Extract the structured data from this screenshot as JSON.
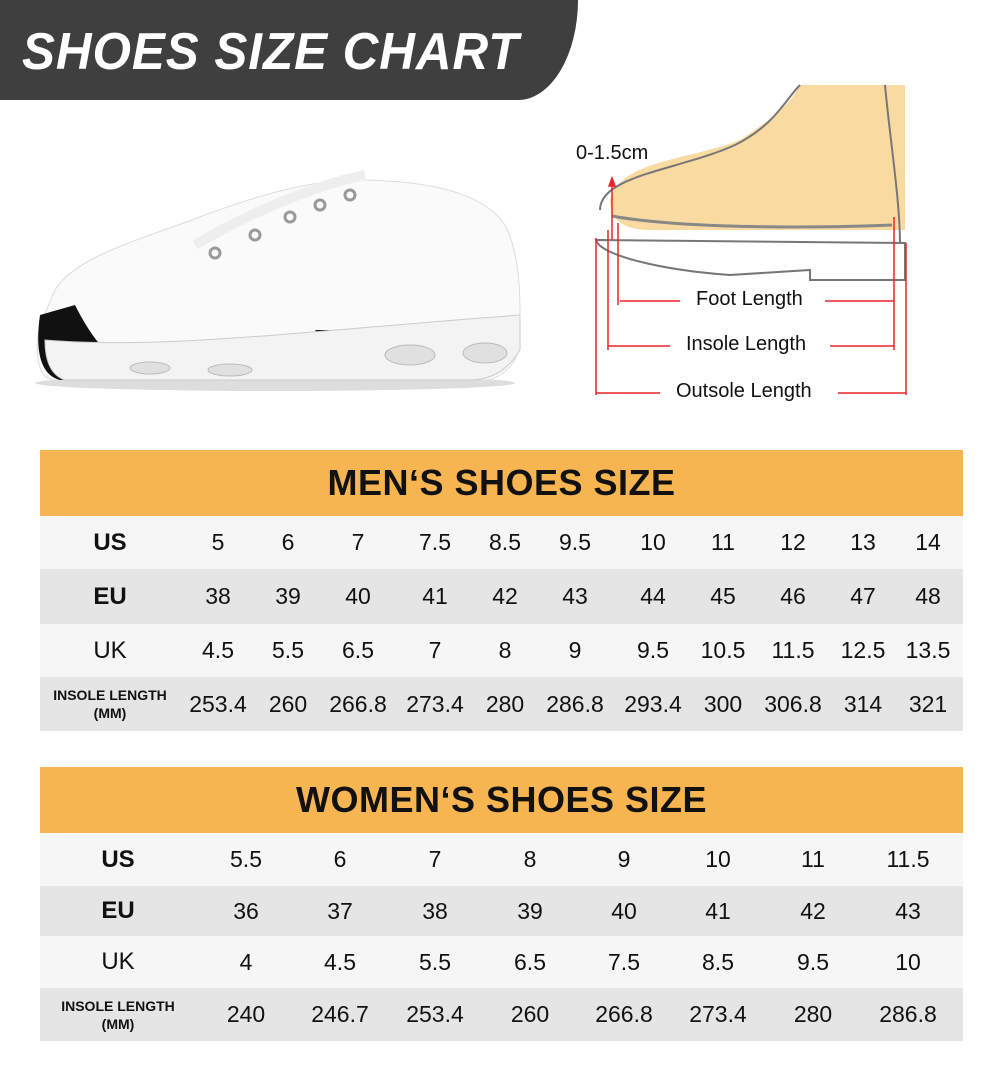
{
  "header": {
    "title": "SHOES SIZE CHART"
  },
  "diagram": {
    "toe_gap": "0-1.5cm",
    "foot_length": "Foot Length",
    "insole_length": "Insole Length",
    "outsole_length": "Outsole Length"
  },
  "colors": {
    "banner": "#3f3f3f",
    "table_header": "#f7b551",
    "row_light": "#f6f6f6",
    "row_dark": "#e5e5e5",
    "measure_lines": "#e8242a"
  },
  "men": {
    "title": "MEN‘S SHOES SIZE",
    "rows": [
      {
        "label": "US",
        "values": [
          "5",
          "6",
          "7",
          "7.5",
          "8.5",
          "9.5",
          "10",
          "11",
          "12",
          "13",
          "14"
        ]
      },
      {
        "label": "EU",
        "values": [
          "38",
          "39",
          "40",
          "41",
          "42",
          "43",
          "44",
          "45",
          "46",
          "47",
          "48"
        ]
      },
      {
        "label": "UK",
        "values": [
          "4.5",
          "5.5",
          "6.5",
          "7",
          "8",
          "9",
          "9.5",
          "10.5",
          "11.5",
          "12.5",
          "13.5"
        ]
      },
      {
        "label": "INSOLE LENGTH",
        "label2": "(MM)",
        "values": [
          "253.4",
          "260",
          "266.8",
          "273.4",
          "280",
          "286.8",
          "293.4",
          "300",
          "306.8",
          "314",
          "321"
        ]
      }
    ]
  },
  "women": {
    "title": "WOMEN‘S SHOES SIZE",
    "rows": [
      {
        "label": "US",
        "values": [
          "5.5",
          "6",
          "7",
          "8",
          "9",
          "10",
          "11",
          "11.5"
        ]
      },
      {
        "label": "EU",
        "values": [
          "36",
          "37",
          "38",
          "39",
          "40",
          "41",
          "42",
          "43"
        ]
      },
      {
        "label": "UK",
        "values": [
          "4",
          "4.5",
          "5.5",
          "6.5",
          "7.5",
          "8.5",
          "9.5",
          "10"
        ]
      },
      {
        "label": "INSOLE LENGTH",
        "label2": "(MM)",
        "values": [
          "240",
          "246.7",
          "253.4",
          "260",
          "266.8",
          "273.4",
          "280",
          "286.8"
        ]
      }
    ]
  }
}
